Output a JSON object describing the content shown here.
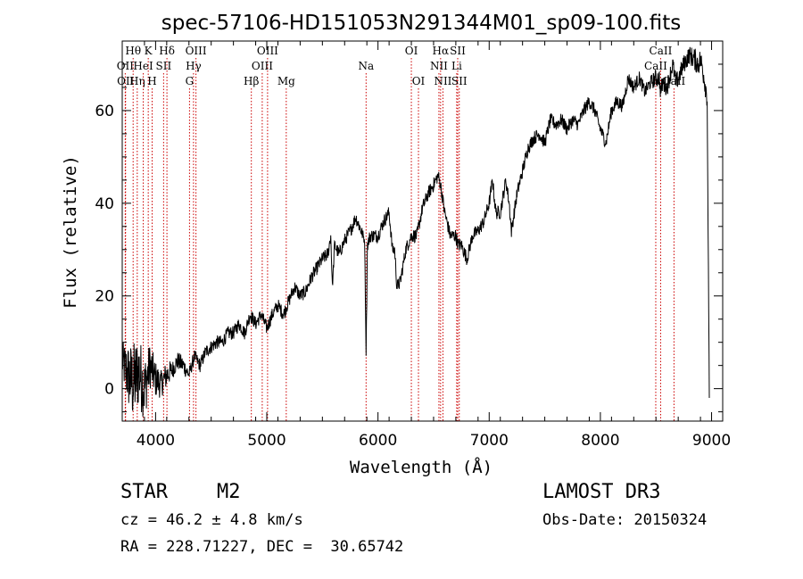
{
  "chart_data": {
    "type": "line",
    "title": "spec-57106-HD151053N291344M01_sp09-100.fits",
    "xlabel": "Wavelength (Å)",
    "ylabel": "Flux (relative)",
    "xlim": [
      3700,
      9100
    ],
    "ylim": [
      -7,
      75
    ],
    "x_ticks": [
      4000,
      5000,
      6000,
      7000,
      8000,
      9000
    ],
    "x_tick_labels": [
      "4000",
      "5000",
      "6000",
      "7000",
      "8000",
      "9000"
    ],
    "y_ticks": [
      0,
      20,
      40,
      60
    ],
    "y_tick_labels": [
      "0",
      "20",
      "40",
      "60"
    ],
    "grid": false,
    "series": [
      {
        "name": "flux",
        "x": [
          3700,
          3750,
          3800,
          3850,
          3900,
          3950,
          4000,
          4050,
          4100,
          4150,
          4200,
          4250,
          4300,
          4350,
          4400,
          4450,
          4500,
          4550,
          4600,
          4650,
          4700,
          4750,
          4800,
          4850,
          4900,
          4950,
          5000,
          5050,
          5100,
          5150,
          5200,
          5250,
          5300,
          5350,
          5400,
          5450,
          5500,
          5550,
          5575,
          5590,
          5610,
          5650,
          5700,
          5750,
          5800,
          5850,
          5880,
          5893,
          5905,
          5930,
          5950,
          6000,
          6050,
          6100,
          6130,
          6150,
          6170,
          6200,
          6250,
          6300,
          6350,
          6400,
          6450,
          6500,
          6540,
          6563,
          6600,
          6650,
          6700,
          6720,
          6750,
          6800,
          6850,
          6900,
          6950,
          7000,
          7030,
          7060,
          7100,
          7150,
          7180,
          7200,
          7250,
          7300,
          7350,
          7400,
          7450,
          7500,
          7550,
          7600,
          7650,
          7700,
          7750,
          7800,
          7850,
          7900,
          7950,
          8000,
          8050,
          8100,
          8150,
          8200,
          8250,
          8300,
          8350,
          8400,
          8450,
          8500,
          8530,
          8542,
          8560,
          8600,
          8650,
          8680,
          8700,
          8750,
          8800,
          8850,
          8880,
          8900,
          8920,
          8960,
          8980
        ],
        "y": [
          6,
          3,
          1,
          4,
          0,
          5,
          2,
          1,
          3,
          4,
          6,
          5,
          3,
          7,
          5,
          8,
          9,
          10,
          10,
          12,
          12,
          14,
          12,
          16,
          14,
          16,
          13,
          16,
          18,
          16,
          19,
          22,
          20,
          21,
          24,
          26,
          28,
          29,
          33,
          22,
          31,
          29,
          32,
          34,
          37,
          34,
          32,
          8,
          31,
          33,
          33,
          33,
          36,
          38,
          30,
          30,
          22,
          23,
          30,
          33,
          33,
          39,
          42,
          44,
          46,
          44,
          38,
          33,
          33,
          31,
          31,
          28,
          33,
          34,
          36,
          40,
          45,
          38,
          38,
          45,
          40,
          34,
          42,
          47,
          52,
          54,
          55,
          53,
          58,
          57,
          58,
          56,
          58,
          57,
          60,
          62,
          60,
          56,
          53,
          60,
          62,
          61,
          67,
          65,
          67,
          64,
          66,
          67,
          67,
          64,
          66,
          65,
          70,
          66,
          67,
          70,
          72,
          71,
          70,
          71,
          69,
          63,
          -2
        ],
        "noise": [
          4,
          7,
          9,
          8,
          7,
          5,
          4,
          3,
          3,
          2,
          2,
          2,
          1.5,
          1.5,
          1.5,
          1.5,
          1.5,
          1.5,
          1.5,
          1.5,
          1.5,
          1.5,
          1.5,
          1.5,
          1.5,
          1.5,
          1.5,
          1.5,
          1.5,
          1.5,
          1.5,
          1.5,
          1.5,
          1.5,
          1.5,
          1.5,
          1.5,
          1.5,
          1.5,
          1,
          1.5,
          1.5,
          1.5,
          1.5,
          1.5,
          1.5,
          1,
          1,
          1.5,
          1.5,
          1.5,
          1.5,
          1.5,
          1.5,
          1.5,
          1.5,
          1.5,
          1.5,
          1.5,
          1.5,
          1.5,
          1.5,
          1.5,
          1.5,
          1.5,
          1.5,
          1.5,
          1.5,
          1.5,
          1.5,
          1.5,
          1.5,
          1.5,
          1.5,
          1.5,
          1.5,
          1.5,
          1.5,
          1.5,
          1.5,
          1.5,
          1.5,
          1.5,
          1.5,
          1.5,
          1.5,
          1.5,
          1.5,
          1.5,
          1.5,
          1.5,
          1.5,
          1.5,
          1.5,
          1.5,
          1.5,
          1.5,
          1.5,
          1.5,
          1.5,
          1.5,
          1.5,
          1.5,
          1.5,
          1.5,
          1.5,
          1.5,
          2,
          2,
          2,
          2,
          2,
          2,
          2,
          2,
          2,
          2,
          2.5,
          2.5,
          2.5,
          2.5,
          2.5,
          0
        ]
      }
    ],
    "line_markers": [
      {
        "label": "Hθ",
        "wavelength": 3798,
        "row": 0
      },
      {
        "label": "OII",
        "wavelength": 3727,
        "row": 1
      },
      {
        "label": "OII",
        "wavelength": 3730,
        "row": 2
      },
      {
        "label": "Hη",
        "wavelength": 3835,
        "row": 2
      },
      {
        "label": "HeI",
        "wavelength": 3889,
        "row": 1
      },
      {
        "label": "K",
        "wavelength": 3934,
        "row": 0
      },
      {
        "label": "H",
        "wavelength": 3969,
        "row": 2
      },
      {
        "label": "SII",
        "wavelength": 4072,
        "row": 1
      },
      {
        "label": "Hδ",
        "wavelength": 4102,
        "row": 0
      },
      {
        "label": "OIII",
        "wavelength": 4363,
        "row": 0
      },
      {
        "label": "Hγ",
        "wavelength": 4341,
        "row": 1
      },
      {
        "label": "G",
        "wavelength": 4305,
        "row": 2
      },
      {
        "label": "Hβ",
        "wavelength": 4861,
        "row": 2
      },
      {
        "label": "OIII",
        "wavelength": 5007,
        "row": 0
      },
      {
        "label": "OIII",
        "wavelength": 4959,
        "row": 1
      },
      {
        "label": "Mg",
        "wavelength": 5175,
        "row": 2
      },
      {
        "label": "Na",
        "wavelength": 5893,
        "row": 1
      },
      {
        "label": "OI",
        "wavelength": 6300,
        "row": 0
      },
      {
        "label": "OI",
        "wavelength": 6364,
        "row": 2
      },
      {
        "label": "Hα",
        "wavelength": 6563,
        "row": 0
      },
      {
        "label": "SII",
        "wavelength": 6717,
        "row": 0
      },
      {
        "label": "NII",
        "wavelength": 6548,
        "row": 1
      },
      {
        "label": "Li",
        "wavelength": 6708,
        "row": 1
      },
      {
        "label": "NII",
        "wavelength": 6584,
        "row": 2
      },
      {
        "label": "SII",
        "wavelength": 6731,
        "row": 2
      },
      {
        "label": "CaII",
        "wavelength": 8542,
        "row": 0
      },
      {
        "label": "CaII",
        "wavelength": 8498,
        "row": 1
      },
      {
        "label": "CaII",
        "wavelength": 8662,
        "row": 2
      }
    ],
    "marker_color": "#cc0000"
  },
  "info": {
    "object_class": "STAR",
    "subclass": "M2",
    "survey": "LAMOST DR3",
    "redshift": "cz = 46.2 ± 4.8 km/s",
    "obs_date": "Obs-Date: 20150324",
    "coords": "RA = 228.71227, DEC =  30.65742"
  }
}
